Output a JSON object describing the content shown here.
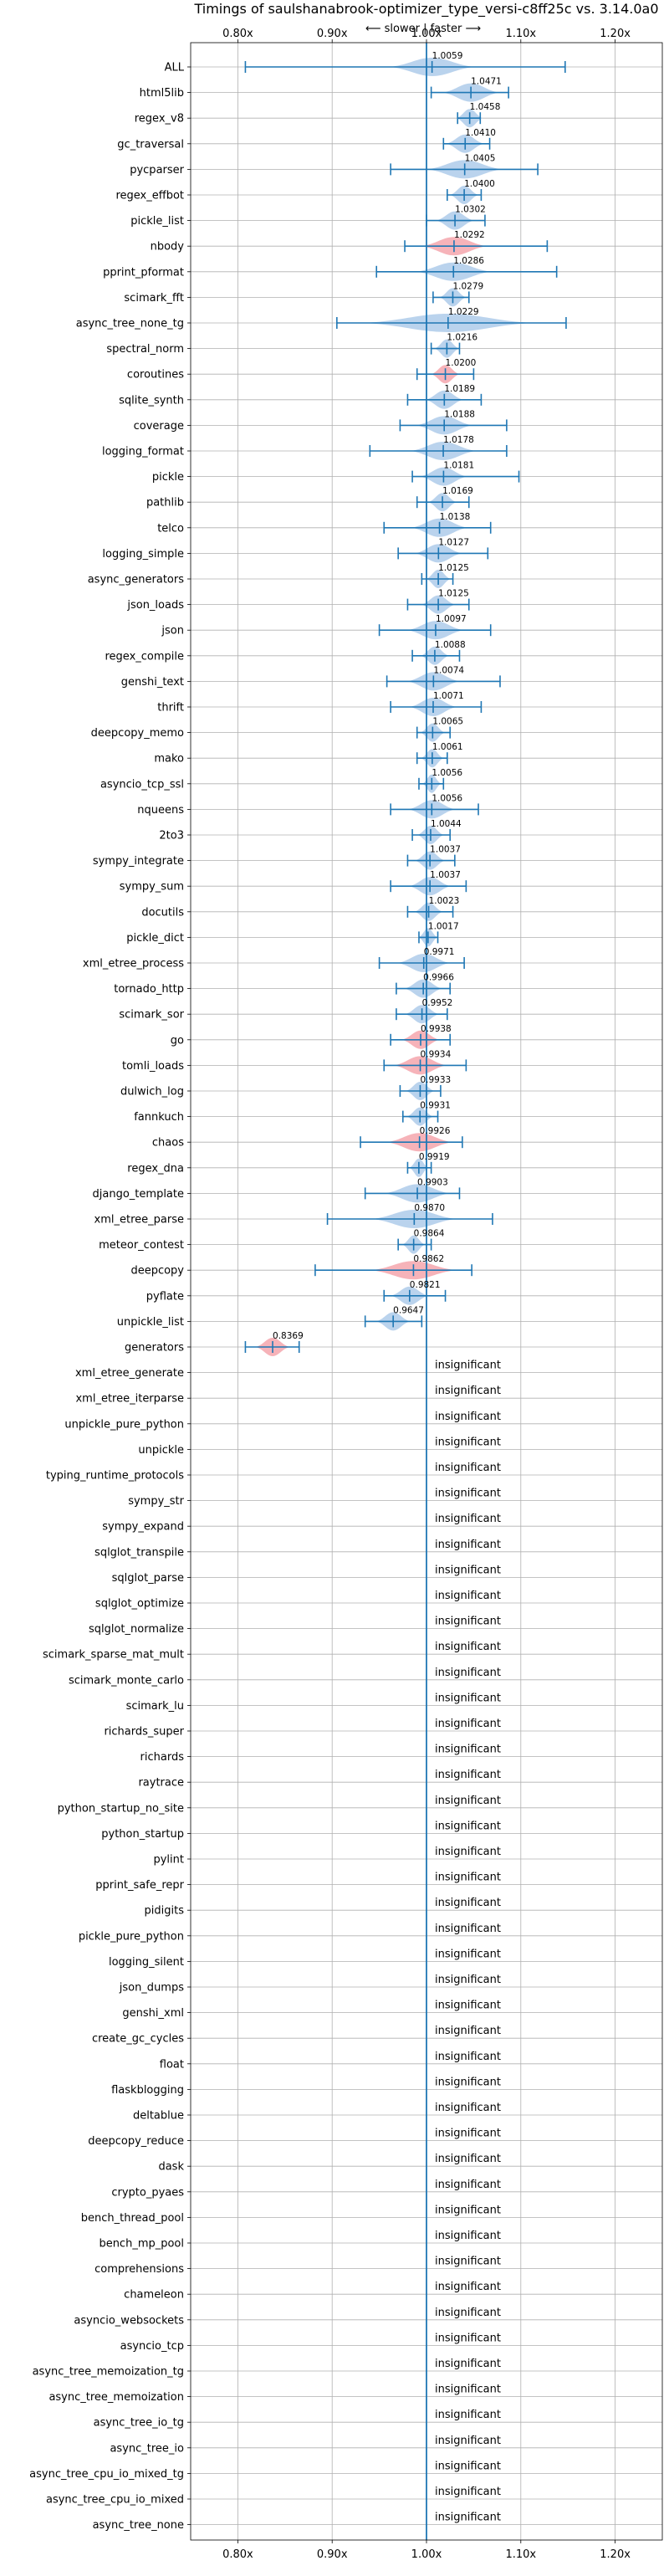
{
  "chart_data": {
    "type": "violin",
    "title": "Timings of saulshanabrook-optimizer_type_versi-c8ff25c vs. 3.14.0a0",
    "direction_label": "⟵ slower | faster ⟶",
    "xlim": [
      0.75,
      1.25
    ],
    "xticks": [
      0.8,
      0.9,
      1.0,
      1.1,
      1.2
    ],
    "xtick_labels": [
      "0.80x",
      "0.90x",
      "1.00x",
      "1.10x",
      "1.20x"
    ],
    "grid": true,
    "reference_x": 1.0,
    "colors": {
      "faster": "#aecbea",
      "slower": "#f4a6ad",
      "errorbar": "#1f77b4",
      "reference": "#1f77b4"
    },
    "insignificant_text": "insignificant",
    "benchmarks": [
      {
        "name": "ALL",
        "value": 1.0059,
        "label": "1.0059",
        "err": [
          0.808,
          1.147
        ],
        "spread": 0.045,
        "color": "faster"
      },
      {
        "name": "html5lib",
        "value": 1.0471,
        "label": "1.0471",
        "err": [
          1.005,
          1.087
        ],
        "spread": 0.03,
        "color": "faster"
      },
      {
        "name": "regex_v8",
        "value": 1.0458,
        "label": "1.0458",
        "err": [
          1.033,
          1.057
        ],
        "spread": 0.014,
        "color": "faster"
      },
      {
        "name": "gc_traversal",
        "value": 1.041,
        "label": "1.0410",
        "err": [
          1.018,
          1.067
        ],
        "spread": 0.02,
        "color": "faster"
      },
      {
        "name": "pycparser",
        "value": 1.0405,
        "label": "1.0405",
        "err": [
          0.962,
          1.118
        ],
        "spread": 0.04,
        "color": "faster"
      },
      {
        "name": "regex_effbot",
        "value": 1.04,
        "label": "1.0400",
        "err": [
          1.022,
          1.058
        ],
        "spread": 0.015,
        "color": "faster"
      },
      {
        "name": "pickle_list",
        "value": 1.0302,
        "label": "1.0302",
        "err": [
          1.0,
          1.062
        ],
        "spread": 0.02,
        "color": "faster"
      },
      {
        "name": "nbody",
        "value": 1.0292,
        "label": "1.0292",
        "err": [
          0.977,
          1.128
        ],
        "spread": 0.035,
        "color": "slower"
      },
      {
        "name": "pprint_pformat",
        "value": 1.0286,
        "label": "1.0286",
        "err": [
          0.947,
          1.138
        ],
        "spread": 0.04,
        "color": "faster"
      },
      {
        "name": "scimark_fft",
        "value": 1.0279,
        "label": "1.0279",
        "err": [
          1.007,
          1.045
        ],
        "spread": 0.014,
        "color": "faster"
      },
      {
        "name": "async_tree_none_tg",
        "value": 1.0229,
        "label": "1.0229",
        "err": [
          0.905,
          1.148
        ],
        "spread": 0.09,
        "color": "faster"
      },
      {
        "name": "spectral_norm",
        "value": 1.0216,
        "label": "1.0216",
        "err": [
          1.005,
          1.035
        ],
        "spread": 0.013,
        "color": "faster"
      },
      {
        "name": "coroutines",
        "value": 1.02,
        "label": "1.0200",
        "err": [
          0.99,
          1.05
        ],
        "spread": 0.015,
        "color": "slower"
      },
      {
        "name": "sqlite_synth",
        "value": 1.0189,
        "label": "1.0189",
        "err": [
          0.98,
          1.058
        ],
        "spread": 0.02,
        "color": "faster"
      },
      {
        "name": "coverage",
        "value": 1.0188,
        "label": "1.0188",
        "err": [
          0.972,
          1.085
        ],
        "spread": 0.03,
        "color": "faster"
      },
      {
        "name": "logging_format",
        "value": 1.0178,
        "label": "1.0178",
        "err": [
          0.94,
          1.085
        ],
        "spread": 0.035,
        "color": "faster"
      },
      {
        "name": "pickle",
        "value": 1.0181,
        "label": "1.0181",
        "err": [
          0.985,
          1.098
        ],
        "spread": 0.025,
        "color": "faster"
      },
      {
        "name": "pathlib",
        "value": 1.0169,
        "label": "1.0169",
        "err": [
          0.99,
          1.045
        ],
        "spread": 0.015,
        "color": "faster"
      },
      {
        "name": "telco",
        "value": 1.0138,
        "label": "1.0138",
        "err": [
          0.955,
          1.068
        ],
        "spread": 0.03,
        "color": "faster"
      },
      {
        "name": "logging_simple",
        "value": 1.0127,
        "label": "1.0127",
        "err": [
          0.97,
          1.065
        ],
        "spread": 0.025,
        "color": "faster"
      },
      {
        "name": "async_generators",
        "value": 1.0125,
        "label": "1.0125",
        "err": [
          0.995,
          1.028
        ],
        "spread": 0.013,
        "color": "faster"
      },
      {
        "name": "json_loads",
        "value": 1.0125,
        "label": "1.0125",
        "err": [
          0.98,
          1.045
        ],
        "spread": 0.018,
        "color": "faster"
      },
      {
        "name": "json",
        "value": 1.0097,
        "label": "1.0097",
        "err": [
          0.95,
          1.068
        ],
        "spread": 0.03,
        "color": "faster"
      },
      {
        "name": "regex_compile",
        "value": 1.0088,
        "label": "1.0088",
        "err": [
          0.985,
          1.035
        ],
        "spread": 0.015,
        "color": "faster"
      },
      {
        "name": "genshi_text",
        "value": 1.0074,
        "label": "1.0074",
        "err": [
          0.958,
          1.078
        ],
        "spread": 0.028,
        "color": "faster"
      },
      {
        "name": "thrift",
        "value": 1.0071,
        "label": "1.0071",
        "err": [
          0.962,
          1.058
        ],
        "spread": 0.025,
        "color": "faster"
      },
      {
        "name": "deepcopy_memo",
        "value": 1.0065,
        "label": "1.0065",
        "err": [
          0.99,
          1.025
        ],
        "spread": 0.013,
        "color": "faster"
      },
      {
        "name": "mako",
        "value": 1.0061,
        "label": "1.0061",
        "err": [
          0.99,
          1.022
        ],
        "spread": 0.012,
        "color": "faster"
      },
      {
        "name": "asyncio_tcp_ssl",
        "value": 1.0056,
        "label": "1.0056",
        "err": [
          0.992,
          1.018
        ],
        "spread": 0.01,
        "color": "faster"
      },
      {
        "name": "nqueens",
        "value": 1.0056,
        "label": "1.0056",
        "err": [
          0.962,
          1.055
        ],
        "spread": 0.025,
        "color": "faster"
      },
      {
        "name": "2to3",
        "value": 1.0044,
        "label": "1.0044",
        "err": [
          0.985,
          1.025
        ],
        "spread": 0.014,
        "color": "faster"
      },
      {
        "name": "sympy_integrate",
        "value": 1.0037,
        "label": "1.0037",
        "err": [
          0.98,
          1.03
        ],
        "spread": 0.016,
        "color": "faster"
      },
      {
        "name": "sympy_sum",
        "value": 1.0037,
        "label": "1.0037",
        "err": [
          0.962,
          1.042
        ],
        "spread": 0.022,
        "color": "faster"
      },
      {
        "name": "docutils",
        "value": 1.0023,
        "label": "1.0023",
        "err": [
          0.98,
          1.028
        ],
        "spread": 0.015,
        "color": "faster"
      },
      {
        "name": "pickle_dict",
        "value": 1.0017,
        "label": "1.0017",
        "err": [
          0.992,
          1.012
        ],
        "spread": 0.01,
        "color": "faster"
      },
      {
        "name": "xml_etree_process",
        "value": 0.9971,
        "label": "0.9971",
        "err": [
          0.95,
          1.04
        ],
        "spread": 0.028,
        "color": "faster"
      },
      {
        "name": "tornado_http",
        "value": 0.9966,
        "label": "0.9966",
        "err": [
          0.968,
          1.025
        ],
        "spread": 0.02,
        "color": "faster"
      },
      {
        "name": "scimark_sor",
        "value": 0.9952,
        "label": "0.9952",
        "err": [
          0.968,
          1.022
        ],
        "spread": 0.018,
        "color": "faster"
      },
      {
        "name": "go",
        "value": 0.9938,
        "label": "0.9938",
        "err": [
          0.962,
          1.025
        ],
        "spread": 0.02,
        "color": "slower"
      },
      {
        "name": "tomli_loads",
        "value": 0.9934,
        "label": "0.9934",
        "err": [
          0.955,
          1.042
        ],
        "spread": 0.028,
        "color": "slower"
      },
      {
        "name": "dulwich_log",
        "value": 0.9933,
        "label": "0.9933",
        "err": [
          0.972,
          1.015
        ],
        "spread": 0.015,
        "color": "faster"
      },
      {
        "name": "fannkuch",
        "value": 0.9931,
        "label": "0.9931",
        "err": [
          0.975,
          1.012
        ],
        "spread": 0.014,
        "color": "faster"
      },
      {
        "name": "chaos",
        "value": 0.9926,
        "label": "0.9926",
        "err": [
          0.93,
          1.038
        ],
        "spread": 0.035,
        "color": "slower"
      },
      {
        "name": "regex_dna",
        "value": 0.9919,
        "label": "0.9919",
        "err": [
          0.98,
          1.005
        ],
        "spread": 0.01,
        "color": "faster"
      },
      {
        "name": "django_template",
        "value": 0.9903,
        "label": "0.9903",
        "err": [
          0.935,
          1.035
        ],
        "spread": 0.035,
        "color": "faster"
      },
      {
        "name": "xml_etree_parse",
        "value": 0.987,
        "label": "0.9870",
        "err": [
          0.895,
          1.07
        ],
        "spread": 0.045,
        "color": "faster"
      },
      {
        "name": "meteor_contest",
        "value": 0.9864,
        "label": "0.9864",
        "err": [
          0.97,
          1.005
        ],
        "spread": 0.012,
        "color": "faster"
      },
      {
        "name": "deepcopy",
        "value": 0.9862,
        "label": "0.9862",
        "err": [
          0.882,
          1.048
        ],
        "spread": 0.045,
        "color": "slower"
      },
      {
        "name": "pyflate",
        "value": 0.9821,
        "label": "0.9821",
        "err": [
          0.955,
          1.02
        ],
        "spread": 0.02,
        "color": "faster"
      },
      {
        "name": "unpickle_list",
        "value": 0.9647,
        "label": "0.9647",
        "err": [
          0.935,
          0.995
        ],
        "spread": 0.018,
        "color": "faster"
      },
      {
        "name": "generators",
        "value": 0.8369,
        "label": "0.8369",
        "err": [
          0.808,
          0.865
        ],
        "spread": 0.018,
        "color": "slower"
      },
      {
        "name": "xml_etree_generate",
        "insignificant": true
      },
      {
        "name": "xml_etree_iterparse",
        "insignificant": true
      },
      {
        "name": "unpickle_pure_python",
        "insignificant": true
      },
      {
        "name": "unpickle",
        "insignificant": true
      },
      {
        "name": "typing_runtime_protocols",
        "insignificant": true
      },
      {
        "name": "sympy_str",
        "insignificant": true
      },
      {
        "name": "sympy_expand",
        "insignificant": true
      },
      {
        "name": "sqlglot_transpile",
        "insignificant": true
      },
      {
        "name": "sqlglot_parse",
        "insignificant": true
      },
      {
        "name": "sqlglot_optimize",
        "insignificant": true
      },
      {
        "name": "sqlglot_normalize",
        "insignificant": true
      },
      {
        "name": "scimark_sparse_mat_mult",
        "insignificant": true
      },
      {
        "name": "scimark_monte_carlo",
        "insignificant": true
      },
      {
        "name": "scimark_lu",
        "insignificant": true
      },
      {
        "name": "richards_super",
        "insignificant": true
      },
      {
        "name": "richards",
        "insignificant": true
      },
      {
        "name": "raytrace",
        "insignificant": true
      },
      {
        "name": "python_startup_no_site",
        "insignificant": true
      },
      {
        "name": "python_startup",
        "insignificant": true
      },
      {
        "name": "pylint",
        "insignificant": true
      },
      {
        "name": "pprint_safe_repr",
        "insignificant": true
      },
      {
        "name": "pidigits",
        "insignificant": true
      },
      {
        "name": "pickle_pure_python",
        "insignificant": true
      },
      {
        "name": "logging_silent",
        "insignificant": true
      },
      {
        "name": "json_dumps",
        "insignificant": true
      },
      {
        "name": "genshi_xml",
        "insignificant": true
      },
      {
        "name": "create_gc_cycles",
        "insignificant": true
      },
      {
        "name": "float",
        "insignificant": true
      },
      {
        "name": "flaskblogging",
        "insignificant": true
      },
      {
        "name": "deltablue",
        "insignificant": true
      },
      {
        "name": "deepcopy_reduce",
        "insignificant": true
      },
      {
        "name": "dask",
        "insignificant": true
      },
      {
        "name": "crypto_pyaes",
        "insignificant": true
      },
      {
        "name": "bench_thread_pool",
        "insignificant": true
      },
      {
        "name": "bench_mp_pool",
        "insignificant": true
      },
      {
        "name": "comprehensions",
        "insignificant": true
      },
      {
        "name": "chameleon",
        "insignificant": true
      },
      {
        "name": "asyncio_websockets",
        "insignificant": true
      },
      {
        "name": "asyncio_tcp",
        "insignificant": true
      },
      {
        "name": "async_tree_memoization_tg",
        "insignificant": true
      },
      {
        "name": "async_tree_memoization",
        "insignificant": true
      },
      {
        "name": "async_tree_io_tg",
        "insignificant": true
      },
      {
        "name": "async_tree_io",
        "insignificant": true
      },
      {
        "name": "async_tree_cpu_io_mixed_tg",
        "insignificant": true
      },
      {
        "name": "async_tree_cpu_io_mixed",
        "insignificant": true
      },
      {
        "name": "async_tree_none",
        "insignificant": true
      }
    ]
  }
}
